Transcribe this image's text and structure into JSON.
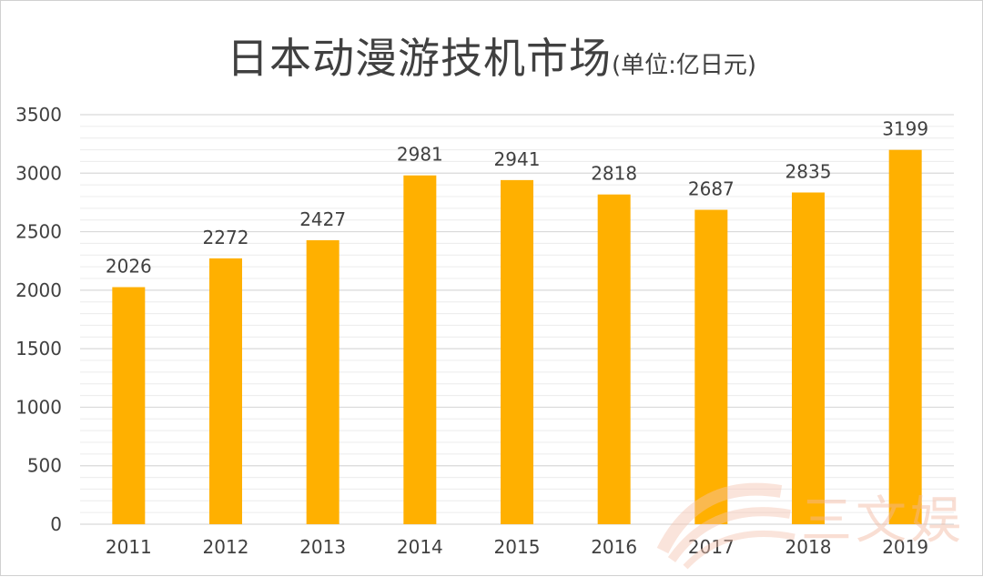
{
  "title": "日本动漫游技机市场",
  "title_unit": "(单位:亿日元)",
  "colors": {
    "bar": "#FFB000",
    "grid": "#d9d9d9",
    "text": "#404040"
  },
  "watermark": {
    "text": "三文娱"
  },
  "chart_data": {
    "type": "bar",
    "title": "日本动漫游技机市场(单位:亿日元)",
    "categories": [
      "2011",
      "2012",
      "2013",
      "2014",
      "2015",
      "2016",
      "2017",
      "2018",
      "2019"
    ],
    "values": [
      2026,
      2272,
      2427,
      2981,
      2941,
      2818,
      2687,
      2835,
      3199
    ],
    "ylim": [
      0,
      3500
    ],
    "yticks": [
      0,
      500,
      1000,
      1500,
      2000,
      2500,
      3000,
      3500
    ],
    "xlabel": "",
    "ylabel": "",
    "grid": true,
    "data_labels": true
  }
}
